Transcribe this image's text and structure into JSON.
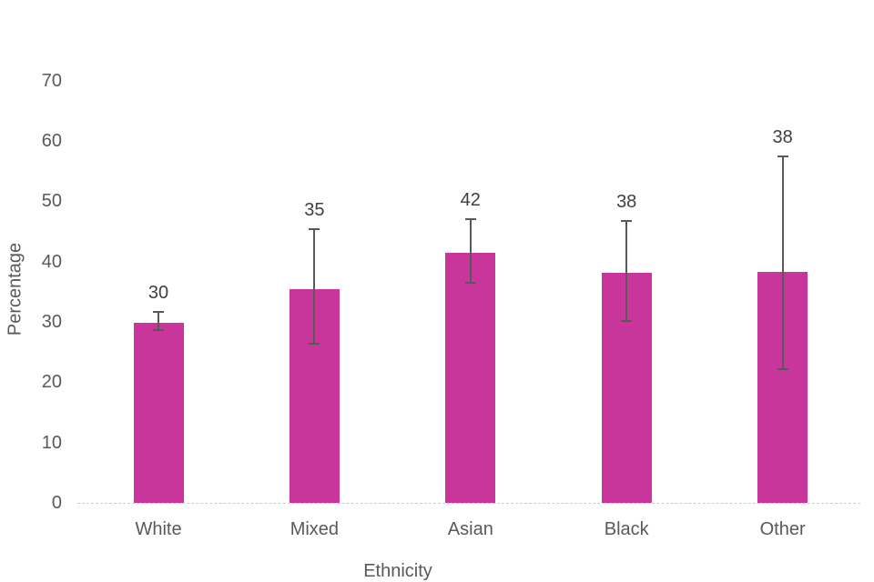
{
  "chart_data": {
    "type": "bar",
    "title": "",
    "xlabel": "Ethnicity",
    "ylabel": "Percentage",
    "categories": [
      "White",
      "Mixed",
      "Asian",
      "Black",
      "Other"
    ],
    "values": [
      29.9,
      35.4,
      41.5,
      38.2,
      38.3
    ],
    "data_labels": [
      "30",
      "35",
      "42",
      "38",
      "38"
    ],
    "error_high": [
      31.6,
      45.4,
      47.0,
      46.8,
      57.4
    ],
    "error_low": [
      28.7,
      26.4,
      36.5,
      30.1,
      22.1
    ],
    "yticks": [
      0,
      10,
      20,
      30,
      40,
      50,
      60,
      70
    ],
    "ylim": [
      0,
      75
    ],
    "grid": false,
    "legend": "none",
    "bar_color": "#c8359b",
    "error_bar_color": "#595959",
    "axis_line_color": "#cccccc",
    "tick_label_color": "#595959",
    "data_label_color": "#404040"
  }
}
